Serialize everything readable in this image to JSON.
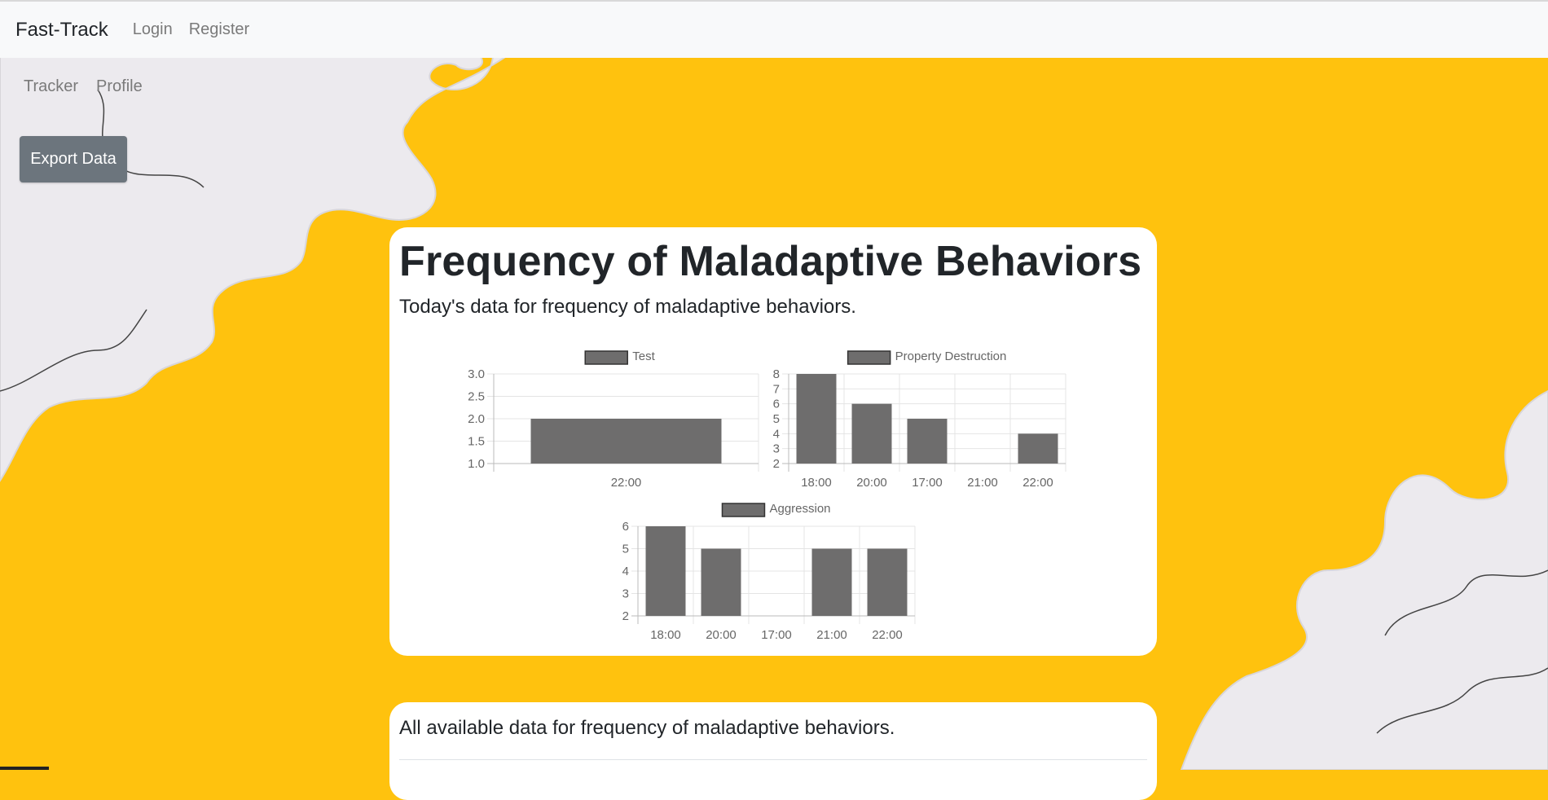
{
  "navbar": {
    "brand": "Fast-Track",
    "links": [
      "Login",
      "Register"
    ]
  },
  "subnav": {
    "links": [
      "Tracker",
      "Profile"
    ]
  },
  "export_button": "Export Data",
  "today_card": {
    "title": "Frequency of Maladaptive Behaviors",
    "subtitle": "Today's data for frequency of maladaptive behaviors."
  },
  "all_card": {
    "subtitle": "All available data for frequency of maladaptive behaviors."
  },
  "colors": {
    "background": "#ffc20e",
    "bar": "#6e6d6d",
    "button": "#6c757d"
  },
  "chart_data": [
    {
      "type": "bar",
      "legend": "Test",
      "categories": [
        "22:00"
      ],
      "values": [
        2
      ],
      "ylim": [
        1,
        3
      ],
      "yticks": [
        "1.0",
        "1.5",
        "2.0",
        "2.5",
        "3.0"
      ],
      "grid": true,
      "legend_position": "top"
    },
    {
      "type": "bar",
      "legend": "Property Destruction",
      "categories": [
        "18:00",
        "20:00",
        "17:00",
        "21:00",
        "22:00"
      ],
      "values": [
        8,
        6,
        5,
        2,
        4
      ],
      "ylim": [
        2,
        8
      ],
      "yticks": [
        "2",
        "3",
        "4",
        "5",
        "6",
        "7",
        "8"
      ],
      "grid": true,
      "legend_position": "top"
    },
    {
      "type": "bar",
      "legend": "Aggression",
      "categories": [
        "18:00",
        "20:00",
        "17:00",
        "21:00",
        "22:00"
      ],
      "values": [
        6,
        5,
        2,
        5,
        5
      ],
      "ylim": [
        2,
        6
      ],
      "yticks": [
        "2",
        "3",
        "4",
        "5",
        "6"
      ],
      "grid": true,
      "legend_position": "top"
    }
  ]
}
